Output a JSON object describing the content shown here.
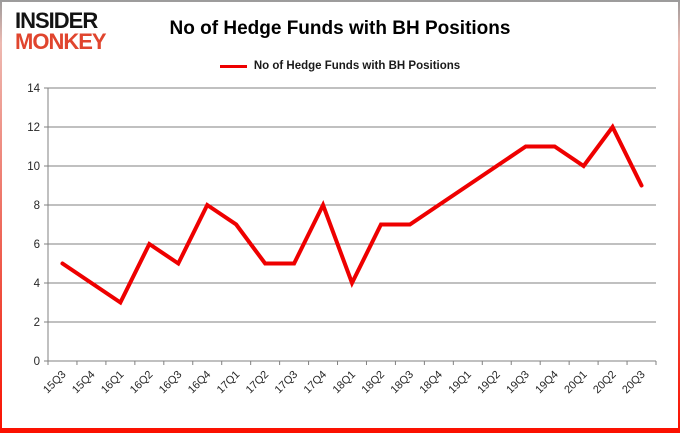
{
  "page": {
    "logo": {
      "line1": "INSIDER",
      "line2": "MONKEY",
      "line1_color": "#131313",
      "line2_color": "#e0452e"
    },
    "title": "No of Hedge Funds with BH Positions",
    "legend": {
      "label": "No of Hedge Funds with BH Positions",
      "line_color": "#ee0000"
    }
  },
  "chart_data": {
    "type": "line",
    "title": "No of Hedge Funds with BH Positions",
    "categories": [
      "15Q3",
      "15Q4",
      "16Q1",
      "16Q2",
      "16Q3",
      "16Q4",
      "17Q1",
      "17Q2",
      "17Q3",
      "17Q4",
      "18Q1",
      "18Q2",
      "18Q3",
      "18Q4",
      "19Q1",
      "19Q2",
      "19Q3",
      "19Q4",
      "20Q1",
      "20Q2",
      "20Q3"
    ],
    "series": [
      {
        "name": "No of Hedge Funds with BH Positions",
        "color": "#ee0000",
        "values": [
          5,
          4,
          3,
          6,
          5,
          8,
          7,
          5,
          5,
          8,
          4,
          7,
          7,
          8,
          9,
          10,
          11,
          11,
          10,
          12,
          9
        ]
      }
    ],
    "xlabel": "",
    "ylabel": "",
    "ylim": [
      0,
      14
    ],
    "ytick_step": 2,
    "yticks": [
      0,
      2,
      4,
      6,
      8,
      10,
      12,
      14
    ],
    "grid": true,
    "legend_position": "top",
    "gridline_color": "#808080",
    "axis_color": "#808080",
    "tick_label_color": "#262626",
    "line_width": 4
  }
}
